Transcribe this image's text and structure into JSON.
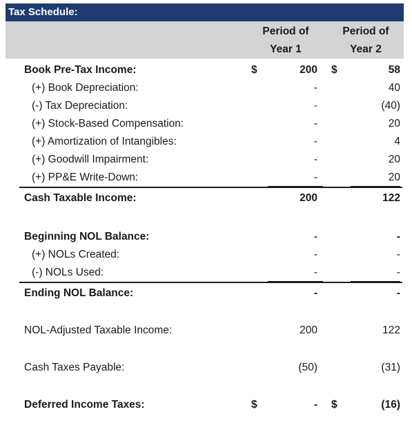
{
  "title": "Tax Schedule:",
  "headers": {
    "col1_line1": "Period of",
    "col1_line2": "Year 1",
    "col2_line1": "Period of",
    "col2_line2": "Year 2"
  },
  "rows": {
    "book_pretax": {
      "label": "Book Pre-Tax Income:",
      "cur1": "$",
      "v1": "200",
      "cur2": "$",
      "v2": "58"
    },
    "book_dep": {
      "label": "(+) Book Depreciation:",
      "v1": "-",
      "v2": "40"
    },
    "tax_dep": {
      "label": "(-) Tax Depreciation:",
      "v1": "-",
      "v2": "(40)"
    },
    "sbc": {
      "label": "(+) Stock-Based Compensation:",
      "v1": "-",
      "v2": "20"
    },
    "amort": {
      "label": "(+) Amortization of Intangibles:",
      "v1": "-",
      "v2": "4"
    },
    "goodwill": {
      "label": "(+) Goodwill Impairment:",
      "v1": "-",
      "v2": "20"
    },
    "ppe": {
      "label": "(+) PP&E Write-Down:",
      "v1": "-",
      "v2": "20"
    },
    "cash_taxable": {
      "label": "Cash Taxable Income:",
      "v1": "200",
      "v2": "122"
    },
    "begin_nol": {
      "label": "Beginning NOL Balance:",
      "v1": "-",
      "v2": "-"
    },
    "nol_created": {
      "label": "(+) NOLs Created:",
      "v1": "-",
      "v2": "-"
    },
    "nol_used": {
      "label": "(-) NOLs Used:",
      "v1": "-",
      "v2": "-"
    },
    "end_nol": {
      "label": "Ending NOL Balance:",
      "v1": "-",
      "v2": "-"
    },
    "nol_adj": {
      "label": "NOL-Adjusted Taxable Income:",
      "v1": "200",
      "v2": "122"
    },
    "cash_taxes": {
      "label": "Cash Taxes Payable:",
      "v1": "(50)",
      "v2": "(31)"
    },
    "deferred": {
      "label": "Deferred Income Taxes:",
      "cur1": "$",
      "v1": "-",
      "cur2": "$",
      "v2": "(16)"
    }
  },
  "colors": {
    "title_bg": "#1f3b70",
    "header_bg": "#d4d4d4",
    "input_blue": "#1f3bcc"
  }
}
